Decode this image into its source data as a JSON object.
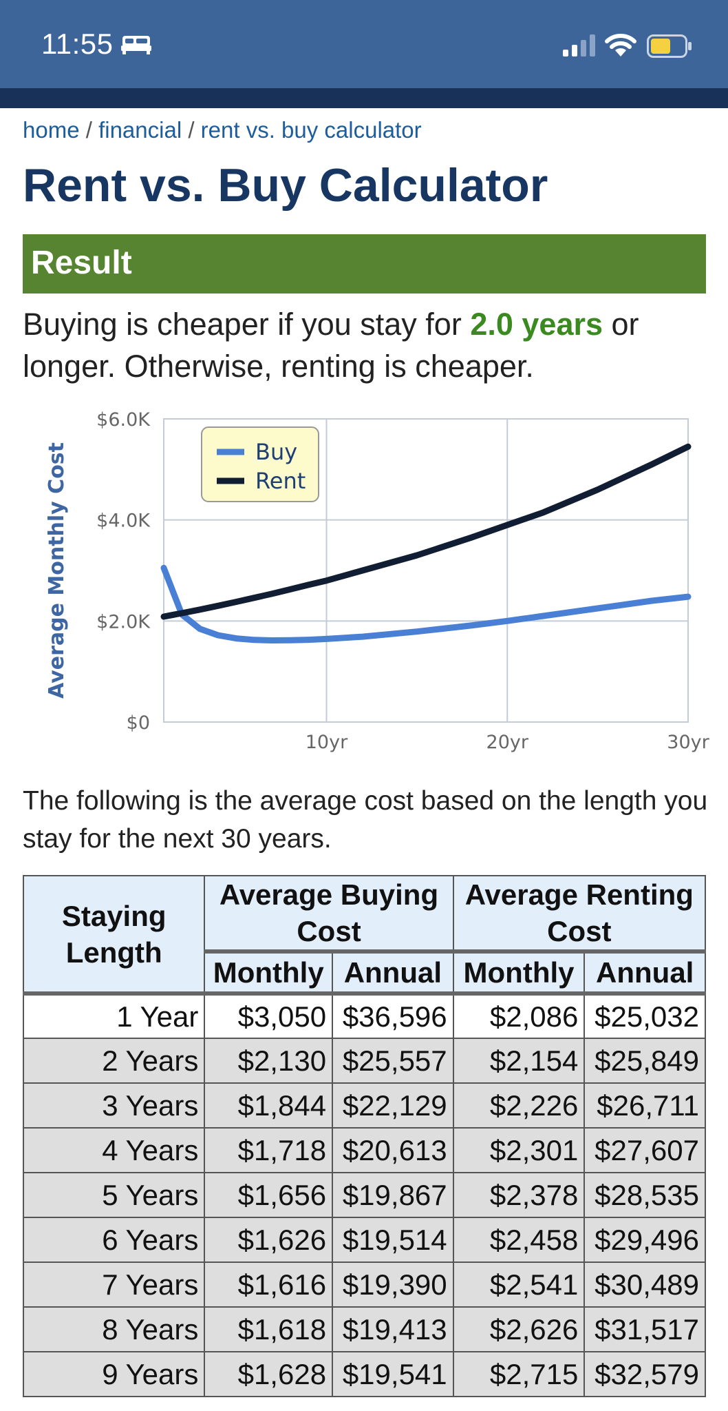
{
  "status_bar": {
    "time": "11:55"
  },
  "breadcrumb": {
    "home": "home",
    "sep": "/",
    "financial": "financial",
    "current": "rent vs. buy calculator"
  },
  "page": {
    "title": "Rent vs. Buy Calculator"
  },
  "result": {
    "header": "Result",
    "text_before": "Buying is cheaper if you stay for ",
    "highlight": "2.0 years",
    "text_after": " or longer. Otherwise, renting is cheaper."
  },
  "colors": {
    "buy": "#4a7fd6",
    "rent": "#111d33",
    "accent": "#568431"
  },
  "chart_data": {
    "type": "line",
    "ylabel": "Average Monthly Cost",
    "xlabel": "",
    "ylim": [
      0,
      6000
    ],
    "xlim": [
      1,
      30
    ],
    "y_ticks": [
      "$0",
      "$2.0K",
      "$4.0K",
      "$6.0K"
    ],
    "x_ticks": [
      "10yr",
      "20yr",
      "30yr"
    ],
    "legend": [
      "Buy",
      "Rent"
    ],
    "legend_position": "top-left",
    "series": [
      {
        "name": "Buy",
        "x": [
          1,
          2,
          3,
          4,
          5,
          6,
          7,
          8,
          9,
          10,
          12,
          15,
          18,
          20,
          22,
          25,
          28,
          30
        ],
        "values": [
          3050,
          2130,
          1844,
          1718,
          1656,
          1626,
          1616,
          1618,
          1628,
          1645,
          1690,
          1790,
          1910,
          2000,
          2100,
          2250,
          2400,
          2480
        ]
      },
      {
        "name": "Rent",
        "x": [
          1,
          2,
          3,
          4,
          5,
          6,
          7,
          8,
          9,
          10,
          12,
          15,
          18,
          20,
          22,
          25,
          28,
          30
        ],
        "values": [
          2086,
          2154,
          2226,
          2301,
          2378,
          2458,
          2541,
          2626,
          2715,
          2800,
          3000,
          3300,
          3650,
          3900,
          4150,
          4600,
          5100,
          5450
        ]
      }
    ]
  },
  "intro": {
    "text": "The following is the average cost based on the length you stay for the next 30 years."
  },
  "table": {
    "headers": {
      "staying": "Staying Length",
      "buying": "Average Buying Cost",
      "renting": "Average Renting Cost",
      "monthly": "Monthly",
      "annual": "Annual"
    },
    "rows": [
      {
        "length": "1 Year",
        "buy_monthly": "$3,050",
        "buy_annual": "$36,596",
        "rent_monthly": "$2,086",
        "rent_annual": "$25,032"
      },
      {
        "length": "2 Years",
        "buy_monthly": "$2,130",
        "buy_annual": "$25,557",
        "rent_monthly": "$2,154",
        "rent_annual": "$25,849"
      },
      {
        "length": "3 Years",
        "buy_monthly": "$1,844",
        "buy_annual": "$22,129",
        "rent_monthly": "$2,226",
        "rent_annual": "$26,711"
      },
      {
        "length": "4 Years",
        "buy_monthly": "$1,718",
        "buy_annual": "$20,613",
        "rent_monthly": "$2,301",
        "rent_annual": "$27,607"
      },
      {
        "length": "5 Years",
        "buy_monthly": "$1,656",
        "buy_annual": "$19,867",
        "rent_monthly": "$2,378",
        "rent_annual": "$28,535"
      },
      {
        "length": "6 Years",
        "buy_monthly": "$1,626",
        "buy_annual": "$19,514",
        "rent_monthly": "$2,458",
        "rent_annual": "$29,496"
      },
      {
        "length": "7 Years",
        "buy_monthly": "$1,616",
        "buy_annual": "$19,390",
        "rent_monthly": "$2,541",
        "rent_annual": "$30,489"
      },
      {
        "length": "8 Years",
        "buy_monthly": "$1,618",
        "buy_annual": "$19,413",
        "rent_monthly": "$2,626",
        "rent_annual": "$31,517"
      },
      {
        "length": "9 Years",
        "buy_monthly": "$1,628",
        "buy_annual": "$19,541",
        "rent_monthly": "$2,715",
        "rent_annual": "$32,579"
      }
    ]
  }
}
